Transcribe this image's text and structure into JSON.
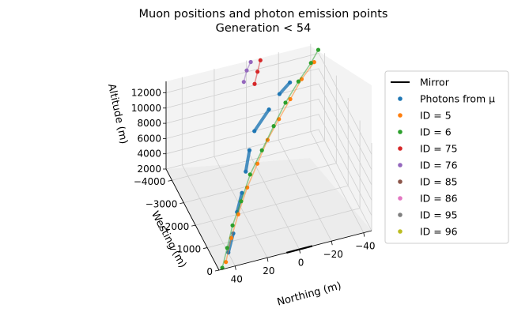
{
  "chart_data": {
    "type": "scatter",
    "projection": "3d",
    "title": "Muon positions and photon emission points",
    "subtitle": "Generation < 54",
    "xlabel": "Northing (m)",
    "ylabel": "Westing (m)",
    "zlabel": "Altitude (m)",
    "xticks": [
      "40",
      "20",
      "0",
      "−20",
      "−40"
    ],
    "yticks": [
      "0",
      "−1000",
      "−2000",
      "−3000",
      "−4000"
    ],
    "zticks": [
      "2000",
      "4000",
      "6000",
      "8000",
      "10000",
      "12000"
    ],
    "xlim": [
      50,
      -45
    ],
    "ylim": [
      0,
      -4500
    ],
    "zlim": [
      2000,
      13500
    ],
    "grid": true,
    "legend_placement": "right",
    "legend": [
      {
        "label": "Mirror",
        "kind": "line",
        "color": "#000000"
      },
      {
        "label": "Photons from μ",
        "kind": "dot",
        "color": "#1f77b4"
      },
      {
        "label": "ID = 5",
        "kind": "dot",
        "color": "#ff7f0e"
      },
      {
        "label": "ID = 6",
        "kind": "dot",
        "color": "#2ca02c"
      },
      {
        "label": "ID = 75",
        "kind": "dot",
        "color": "#d62728"
      },
      {
        "label": "ID = 76",
        "kind": "dot",
        "color": "#9467bd"
      },
      {
        "label": "ID = 85",
        "kind": "dot",
        "color": "#8c564b"
      },
      {
        "label": "ID = 86",
        "kind": "dot",
        "color": "#e377c2"
      },
      {
        "label": "ID = 95",
        "kind": "dot",
        "color": "#7f7f7f"
      },
      {
        "label": "ID = 96",
        "kind": "dot",
        "color": "#bcbd22"
      }
    ],
    "mirror": {
      "x": [
        8,
        -8
      ],
      "y": [
        0,
        0
      ],
      "z": [
        2000,
        2000
      ]
    },
    "series": [
      {
        "name": "Photons from μ",
        "color": "#1f77b4",
        "x": [
          42,
          36,
          30,
          24,
          18,
          12,
          6,
          -6,
          -14,
          -22
        ],
        "y": [
          -300,
          -700,
          -1200,
          -1600,
          -2100,
          -2600,
          -3000,
          -3400,
          -3600,
          -3800
        ],
        "z": [
          3000,
          4000,
          5000,
          6000,
          7000,
          8000,
          9000,
          10000,
          11000,
          11500
        ]
      },
      {
        "name": "ID = 5",
        "color": "#ff7f0e",
        "x": [
          45,
          38,
          30,
          20,
          10,
          0,
          -10,
          -20,
          -30,
          -40
        ],
        "y": [
          -100,
          -600,
          -1100,
          -1700,
          -2200,
          -2700,
          -3100,
          -3500,
          -3900,
          -4200
        ],
        "z": [
          2500,
          3800,
          5000,
          6200,
          7300,
          8400,
          9400,
          10300,
          11200,
          12000
        ]
      },
      {
        "name": "ID = 6",
        "color": "#2ca02c",
        "x": [
          48,
          42,
          35,
          26,
          16,
          5,
          -6,
          -17,
          -28,
          -38,
          -44
        ],
        "y": [
          0,
          -400,
          -900,
          -1400,
          -2000,
          -2500,
          -3000,
          -3500,
          -3900,
          -4200,
          -4400
        ],
        "z": [
          2200,
          3300,
          4400,
          5600,
          6800,
          7900,
          9000,
          10000,
          11000,
          12000,
          12800
        ]
      },
      {
        "name": "ID = 75",
        "color": "#d62728",
        "x": [
          0,
          -4,
          -8
        ],
        "y": [
          -3800,
          -4100,
          -4400
        ],
        "z": [
          12500,
          13000,
          13400
        ]
      },
      {
        "name": "ID = 76",
        "color": "#9467bd",
        "x": [
          6,
          2,
          -2
        ],
        "y": [
          -3900,
          -4200,
          -4400
        ],
        "z": [
          12800,
          13200,
          13500
        ]
      }
    ]
  }
}
